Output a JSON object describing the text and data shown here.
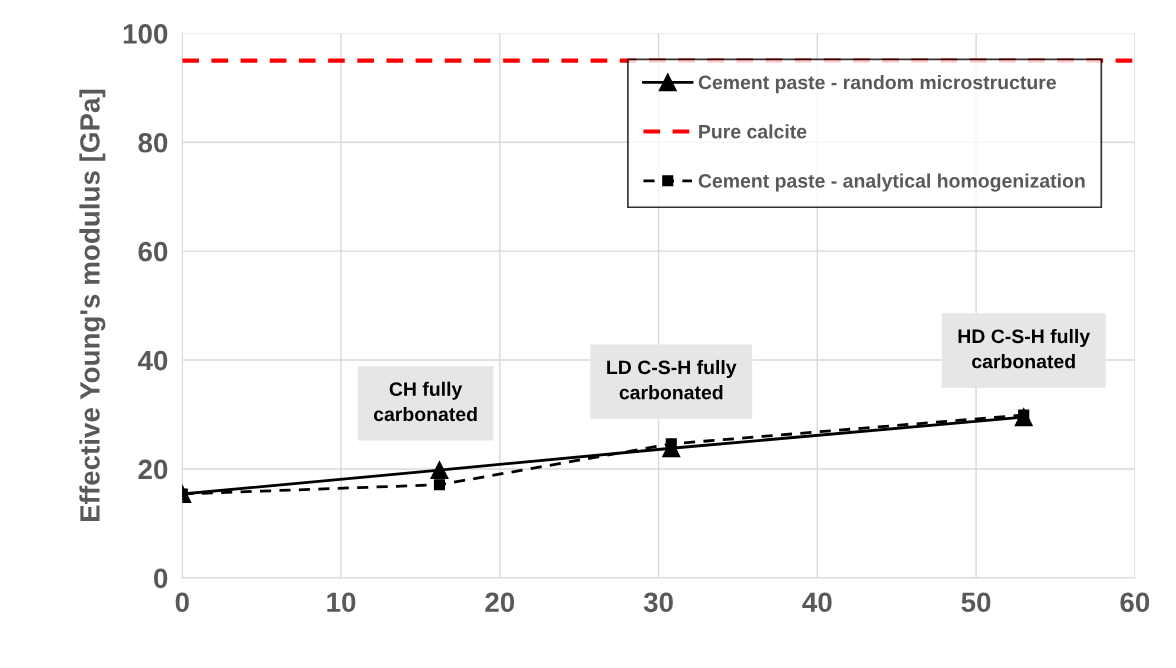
{
  "chart_data": {
    "type": "line",
    "ylabel": "Effective Young's modulus [GPa]",
    "xlim": [
      0,
      60
    ],
    "xticks": [
      0,
      10,
      20,
      30,
      40,
      50,
      60
    ],
    "ylim": [
      0,
      100
    ],
    "yticks": [
      0,
      20,
      40,
      60,
      80,
      100
    ],
    "grid": true,
    "legend": "top right",
    "series": [
      {
        "name": "Cement paste - random microstructure",
        "color": "#000000",
        "x": [
          0,
          16.2,
          30.8,
          53.0
        ],
        "values": [
          15.4,
          19.8,
          23.8,
          29.5
        ],
        "marker": "triangle",
        "line_style": "solid"
      },
      {
        "name": "Pure calcite",
        "color": "#ff0000",
        "x": [
          0,
          60
        ],
        "values": [
          95,
          95
        ],
        "marker": "none",
        "line_style": "dashed"
      },
      {
        "name": "Cement paste - analytical homogenization",
        "color": "#000000",
        "x": [
          0,
          16.2,
          30.8,
          53.0
        ],
        "values": [
          15.4,
          17.1,
          24.6,
          29.9
        ],
        "marker": "square",
        "line_style": "dashed"
      }
    ],
    "annotations": [
      "CH fully\ncarbonated",
      "LD C-S-H fully\ncarbonated",
      "HD C-S-H fully\ncarbonated"
    ]
  }
}
